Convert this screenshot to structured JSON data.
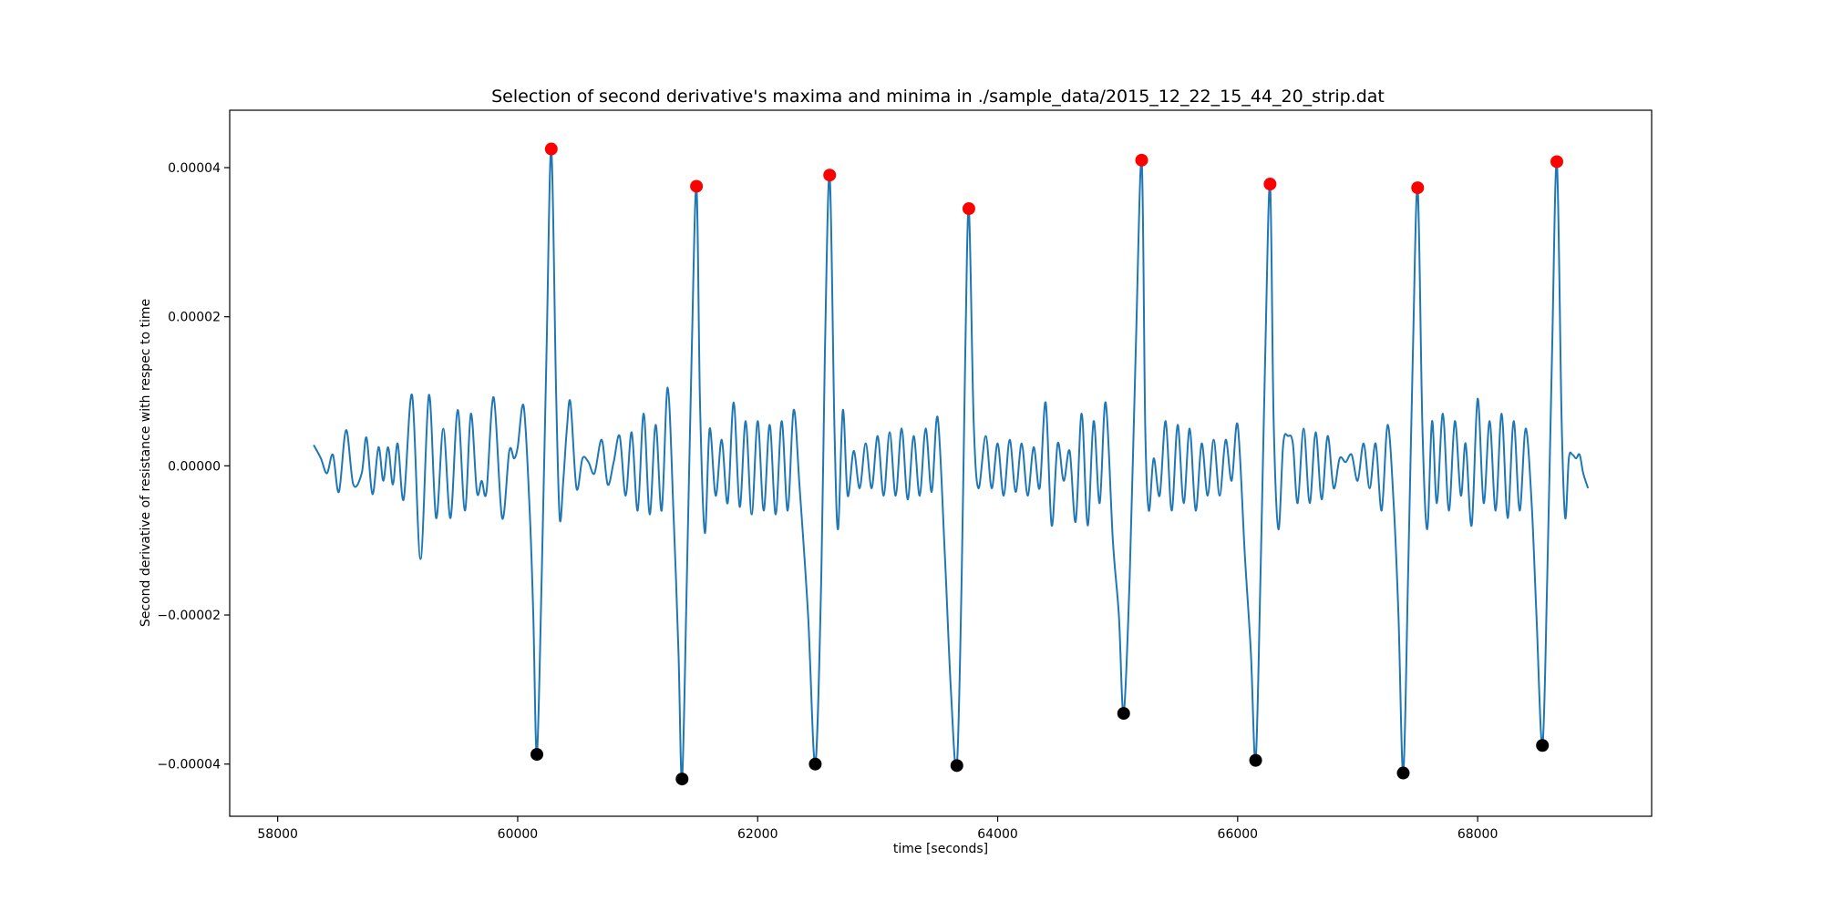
{
  "chart_data": {
    "type": "line",
    "title": "Selection of second derivative's maxima and minima in ./sample_data/2015_12_22_15_44_20_strip.dat",
    "xlabel": "time [seconds]",
    "ylabel": "Second derivative of resistance with respec to time",
    "xlim": [
      57600,
      69450
    ],
    "ylim": [
      -4.7e-05,
      4.77e-05
    ],
    "x_ticks": [
      58000,
      60000,
      62000,
      64000,
      66000,
      68000
    ],
    "x_tick_labels": [
      "58000",
      "60000",
      "62000",
      "64000",
      "66000",
      "68000"
    ],
    "y_ticks": [
      4e-05,
      2e-05,
      0.0,
      -2e-05,
      -4e-05
    ],
    "y_tick_labels": [
      "0.00004",
      "0.00002",
      "0.00000",
      "−0.00002",
      "−0.00004"
    ],
    "grid": false,
    "line_color": "#1f77b4",
    "maxima_color": "#ff0000",
    "minima_color": "#000000",
    "series": [
      {
        "values": [
          [
            58300,
            2.8e-06
          ],
          [
            58360,
            1e-06
          ],
          [
            58410,
            -1e-06
          ],
          [
            58460,
            1.5e-06
          ],
          [
            58510,
            -3.5e-06
          ],
          [
            58570,
            4.8e-06
          ],
          [
            58630,
            -2.5e-06
          ],
          [
            58700,
            -1e-06
          ],
          [
            58740,
            3.8e-06
          ],
          [
            58790,
            -3.8e-06
          ],
          [
            58840,
            2.5e-06
          ],
          [
            58880,
            -2e-06
          ],
          [
            58920,
            2.5e-06
          ],
          [
            58960,
            -2.5e-06
          ],
          [
            59000,
            3e-06
          ],
          [
            59050,
            -4.5e-06
          ],
          [
            59120,
            9.5e-06
          ],
          [
            59190,
            -1.25e-05
          ],
          [
            59260,
            9.5e-06
          ],
          [
            59320,
            -7e-06
          ],
          [
            59380,
            5e-06
          ],
          [
            59440,
            -7e-06
          ],
          [
            59500,
            7.5e-06
          ],
          [
            59560,
            -6e-06
          ],
          [
            59610,
            7e-06
          ],
          [
            59660,
            -3.5e-06
          ],
          [
            59700,
            -2e-06
          ],
          [
            59740,
            -3.5e-06
          ],
          [
            59800,
            9.2e-06
          ],
          [
            59870,
            -7e-06
          ],
          [
            59930,
            2e-06
          ],
          [
            59970,
            1e-06
          ],
          [
            60000,
            2.5e-06
          ],
          [
            60050,
            8e-06
          ],
          [
            60100,
            -6e-06
          ],
          [
            60130,
            -2e-05
          ],
          [
            60160,
            -3.87e-05
          ],
          [
            60200,
            -1.5e-05
          ],
          [
            60240,
            1.5e-05
          ],
          [
            60280,
            4.25e-05
          ],
          [
            60320,
            1e-05
          ],
          [
            60350,
            -7e-06
          ],
          [
            60380,
            -2e-06
          ],
          [
            60410,
            5e-06
          ],
          [
            60440,
            8.5e-06
          ],
          [
            60490,
            -3e-06
          ],
          [
            60540,
            1e-06
          ],
          [
            60590,
            5e-07
          ],
          [
            60640,
            -1e-06
          ],
          [
            60700,
            3.5e-06
          ],
          [
            60750,
            -2.5e-06
          ],
          [
            60800,
            5e-07
          ],
          [
            60850,
            4e-06
          ],
          [
            60900,
            -4e-06
          ],
          [
            60950,
            4.5e-06
          ],
          [
            61000,
            -6e-06
          ],
          [
            61050,
            7e-06
          ],
          [
            61100,
            -6.5e-06
          ],
          [
            61150,
            5.5e-06
          ],
          [
            61200,
            -6e-06
          ],
          [
            61250,
            1.05e-05
          ],
          [
            61300,
            -7e-06
          ],
          [
            61340,
            -2.5e-05
          ],
          [
            61370,
            -4.2e-05
          ],
          [
            61410,
            -1.5e-05
          ],
          [
            61450,
            1.5e-05
          ],
          [
            61490,
            3.75e-05
          ],
          [
            61520,
            8e-06
          ],
          [
            61560,
            -9e-06
          ],
          [
            61600,
            5e-06
          ],
          [
            61650,
            -4e-06
          ],
          [
            61700,
            3.5e-06
          ],
          [
            61750,
            -5e-06
          ],
          [
            61800,
            8.5e-06
          ],
          [
            61850,
            -5.5e-06
          ],
          [
            61900,
            6e-06
          ],
          [
            61950,
            -6.5e-06
          ],
          [
            62000,
            6e-06
          ],
          [
            62050,
            -6e-06
          ],
          [
            62100,
            5.5e-06
          ],
          [
            62150,
            -6.5e-06
          ],
          [
            62200,
            6e-06
          ],
          [
            62250,
            -6e-06
          ],
          [
            62300,
            7.5e-06
          ],
          [
            62350,
            -3e-06
          ],
          [
            62420,
            -2e-05
          ],
          [
            62480,
            -4e-05
          ],
          [
            62530,
            -1.5e-05
          ],
          [
            62560,
            1.5e-05
          ],
          [
            62600,
            3.9e-05
          ],
          [
            62640,
            5e-06
          ],
          [
            62670,
            -8.5e-06
          ],
          [
            62710,
            7.5e-06
          ],
          [
            62750,
            -4e-06
          ],
          [
            62800,
            2e-06
          ],
          [
            62850,
            -3e-06
          ],
          [
            62900,
            3e-06
          ],
          [
            62950,
            -3e-06
          ],
          [
            63000,
            4e-06
          ],
          [
            63050,
            -4e-06
          ],
          [
            63100,
            4.5e-06
          ],
          [
            63150,
            -4e-06
          ],
          [
            63200,
            5e-06
          ],
          [
            63250,
            -4.5e-06
          ],
          [
            63300,
            4e-06
          ],
          [
            63350,
            -4e-06
          ],
          [
            63400,
            5e-06
          ],
          [
            63450,
            -3.5e-06
          ],
          [
            63500,
            6.5e-06
          ],
          [
            63560,
            -1.2e-05
          ],
          [
            63610,
            -3e-05
          ],
          [
            63660,
            -4.02e-05
          ],
          [
            63700,
            -1.5e-05
          ],
          [
            63730,
            1.5e-05
          ],
          [
            63760,
            3.45e-05
          ],
          [
            63800,
            6e-06
          ],
          [
            63840,
            -3e-06
          ],
          [
            63900,
            4e-06
          ],
          [
            63950,
            -3e-06
          ],
          [
            64000,
            3e-06
          ],
          [
            64050,
            -4e-06
          ],
          [
            64100,
            3.5e-06
          ],
          [
            64150,
            -3.5e-06
          ],
          [
            64200,
            3e-06
          ],
          [
            64250,
            -4e-06
          ],
          [
            64300,
            2.5e-06
          ],
          [
            64350,
            -3e-06
          ],
          [
            64400,
            8.5e-06
          ],
          [
            64450,
            -8e-06
          ],
          [
            64500,
            3e-06
          ],
          [
            64550,
            -2e-06
          ],
          [
            64600,
            2e-06
          ],
          [
            64650,
            -7.5e-06
          ],
          [
            64700,
            7e-06
          ],
          [
            64750,
            -8e-06
          ],
          [
            64800,
            6e-06
          ],
          [
            64850,
            -5e-06
          ],
          [
            64900,
            8.5e-06
          ],
          [
            64960,
            -1e-05
          ],
          [
            65010,
            -2e-05
          ],
          [
            65050,
            -3.32e-05
          ],
          [
            65100,
            -1.5e-05
          ],
          [
            65150,
            1.5e-05
          ],
          [
            65200,
            4.1e-05
          ],
          [
            65230,
            5e-06
          ],
          [
            65260,
            -6e-06
          ],
          [
            65300,
            1e-06
          ],
          [
            65350,
            -4e-06
          ],
          [
            65400,
            6e-06
          ],
          [
            65450,
            -6e-06
          ],
          [
            65500,
            5.5e-06
          ],
          [
            65550,
            -5e-06
          ],
          [
            65600,
            5e-06
          ],
          [
            65650,
            -6e-06
          ],
          [
            65700,
            3e-06
          ],
          [
            65750,
            -4e-06
          ],
          [
            65800,
            3.5e-06
          ],
          [
            65850,
            -4e-06
          ],
          [
            65900,
            3.5e-06
          ],
          [
            65950,
            -2e-06
          ],
          [
            66000,
            5.5e-06
          ],
          [
            66060,
            -1.2e-05
          ],
          [
            66110,
            -2.5e-05
          ],
          [
            66150,
            -3.95e-05
          ],
          [
            66190,
            -1.5e-05
          ],
          [
            66230,
            1.5e-05
          ],
          [
            66270,
            3.78e-05
          ],
          [
            66300,
            6e-06
          ],
          [
            66340,
            -8.5e-06
          ],
          [
            66380,
            3e-06
          ],
          [
            66420,
            4e-06
          ],
          [
            66460,
            3e-06
          ],
          [
            66500,
            -5e-06
          ],
          [
            66550,
            5e-06
          ],
          [
            66600,
            -5e-06
          ],
          [
            66650,
            4.5e-06
          ],
          [
            66700,
            -4.5e-06
          ],
          [
            66750,
            4e-06
          ],
          [
            66800,
            -3e-06
          ],
          [
            66850,
            1e-06
          ],
          [
            66900,
            5e-07
          ],
          [
            66950,
            1.5e-06
          ],
          [
            67000,
            -2e-06
          ],
          [
            67050,
            3e-06
          ],
          [
            67100,
            -3e-06
          ],
          [
            67150,
            3e-06
          ],
          [
            67200,
            -6e-06
          ],
          [
            67250,
            5.5e-06
          ],
          [
            67300,
            -5e-06
          ],
          [
            67340,
            -2e-05
          ],
          [
            67380,
            -4.12e-05
          ],
          [
            67420,
            -1.5e-05
          ],
          [
            67460,
            1.5e-05
          ],
          [
            67500,
            3.73e-05
          ],
          [
            67540,
            5e-06
          ],
          [
            67580,
            -8.5e-06
          ],
          [
            67620,
            6e-06
          ],
          [
            67660,
            -5e-06
          ],
          [
            67710,
            7e-06
          ],
          [
            67760,
            -6e-06
          ],
          [
            67810,
            6e-06
          ],
          [
            67860,
            -4e-06
          ],
          [
            67900,
            3e-06
          ],
          [
            67950,
            -8e-06
          ],
          [
            68000,
            9e-06
          ],
          [
            68050,
            -5e-06
          ],
          [
            68100,
            6e-06
          ],
          [
            68150,
            -6e-06
          ],
          [
            68200,
            7e-06
          ],
          [
            68250,
            -7e-06
          ],
          [
            68300,
            6e-06
          ],
          [
            68350,
            -6e-06
          ],
          [
            68400,
            5e-06
          ],
          [
            68450,
            -5e-06
          ],
          [
            68490,
            -2e-05
          ],
          [
            68540,
            -3.75e-05
          ],
          [
            68580,
            -1.5e-05
          ],
          [
            68620,
            1.5e-05
          ],
          [
            68660,
            4.08e-05
          ],
          [
            68700,
            6e-06
          ],
          [
            68730,
            -7e-06
          ],
          [
            68760,
            1e-06
          ],
          [
            68790,
            1.5e-06
          ],
          [
            68820,
            1e-06
          ],
          [
            68850,
            1.5e-06
          ],
          [
            68880,
            -1e-06
          ],
          [
            68920,
            -3e-06
          ]
        ]
      }
    ],
    "maxima": [
      [
        60280,
        4.25e-05
      ],
      [
        61490,
        3.75e-05
      ],
      [
        62600,
        3.9e-05
      ],
      [
        63760,
        3.45e-05
      ],
      [
        65200,
        4.1e-05
      ],
      [
        66270,
        3.78e-05
      ],
      [
        67500,
        3.73e-05
      ],
      [
        68660,
        4.08e-05
      ]
    ],
    "minima": [
      [
        60160,
        -3.87e-05
      ],
      [
        61370,
        -4.2e-05
      ],
      [
        62480,
        -4e-05
      ],
      [
        63660,
        -4.02e-05
      ],
      [
        65050,
        -3.32e-05
      ],
      [
        66150,
        -3.95e-05
      ],
      [
        67380,
        -4.12e-05
      ],
      [
        68540,
        -3.75e-05
      ]
    ]
  }
}
